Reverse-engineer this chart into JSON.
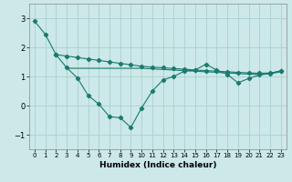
{
  "xlabel": "Humidex (Indice chaleur)",
  "xlim": [
    -0.5,
    23.5
  ],
  "ylim": [
    -1.5,
    3.5
  ],
  "yticks": [
    -1,
    0,
    1,
    2,
    3
  ],
  "xticks": [
    0,
    1,
    2,
    3,
    4,
    5,
    6,
    7,
    8,
    9,
    10,
    11,
    12,
    13,
    14,
    15,
    16,
    17,
    18,
    19,
    20,
    21,
    22,
    23
  ],
  "bg_color": "#cce8e8",
  "grid_color": "#aacfcf",
  "line_color": "#1a7a6e",
  "line1_x": [
    0,
    1,
    2,
    3,
    4,
    5,
    6,
    7,
    8,
    9,
    10,
    11,
    12,
    13,
    14,
    15,
    16,
    17,
    18,
    19,
    20,
    21,
    22,
    23
  ],
  "line1_y": [
    2.9,
    2.45,
    1.75,
    1.3,
    0.95,
    0.35,
    0.05,
    -0.38,
    -0.42,
    -0.75,
    -0.08,
    0.5,
    0.88,
    1.0,
    1.18,
    1.22,
    1.42,
    1.22,
    1.07,
    0.78,
    0.93,
    1.05,
    1.1,
    1.2
  ],
  "line2_x": [
    2,
    3,
    4,
    5,
    6,
    7,
    8,
    9,
    10,
    11,
    12,
    13,
    14,
    15,
    16,
    17,
    18,
    19,
    20,
    21,
    22,
    23
  ],
  "line2_y": [
    1.75,
    1.7,
    1.65,
    1.6,
    1.55,
    1.5,
    1.45,
    1.4,
    1.35,
    1.32,
    1.3,
    1.27,
    1.25,
    1.22,
    1.2,
    1.18,
    1.16,
    1.14,
    1.12,
    1.11,
    1.12,
    1.18
  ],
  "line3_x": [
    3,
    4,
    5,
    6,
    7,
    8,
    9,
    10,
    11,
    12,
    13,
    14,
    15,
    16,
    17,
    18,
    19,
    20,
    21,
    22,
    23
  ],
  "line3_y": [
    1.28,
    1.28,
    1.28,
    1.28,
    1.28,
    1.28,
    1.28,
    1.28,
    1.26,
    1.24,
    1.22,
    1.2,
    1.18,
    1.16,
    1.14,
    1.12,
    1.1,
    1.08,
    1.07,
    1.09,
    1.16
  ]
}
